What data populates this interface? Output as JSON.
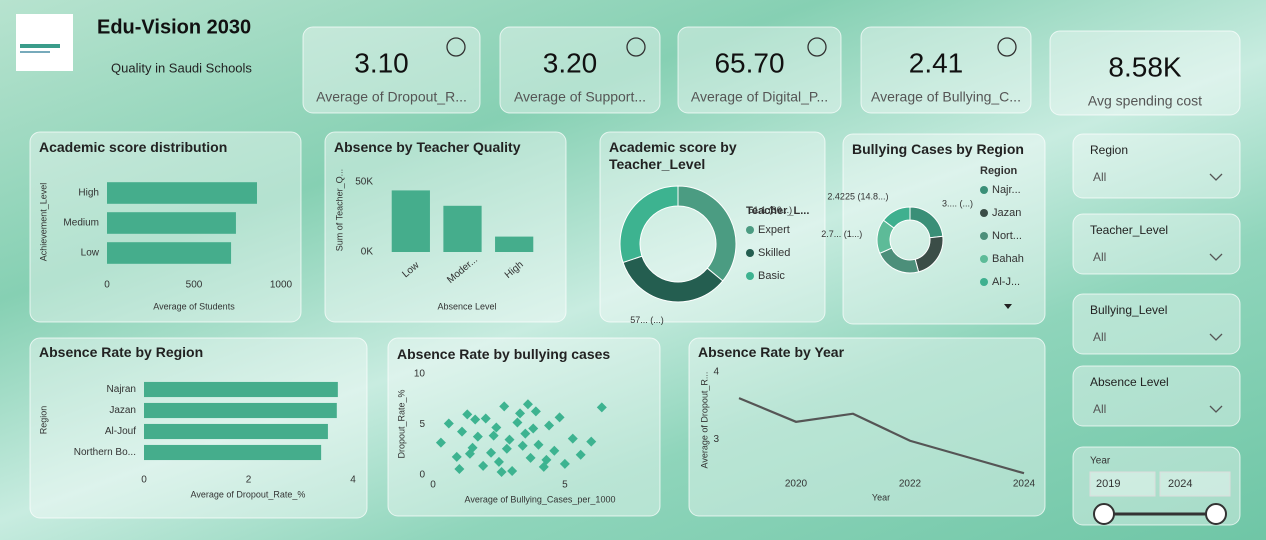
{
  "header": {
    "title": "Edu-Vision 2030",
    "subtitle": "Quality in Saudi Schools"
  },
  "kpis": [
    {
      "value": "3.10",
      "label": "Average of Dropout_R..."
    },
    {
      "value": "3.20",
      "label": "Average of Support..."
    },
    {
      "value": "65.70",
      "label": "Average of Digital_P..."
    },
    {
      "value": "2.41",
      "label": "Average of Bullying_C..."
    },
    {
      "value": "8.58K",
      "label": "Avg spending cost"
    }
  ],
  "slicers": [
    {
      "label": "Region",
      "value": "All"
    },
    {
      "label": "Teacher_Level",
      "value": "All"
    },
    {
      "label": "Bullying_Level",
      "value": "All"
    },
    {
      "label": "Absence Level",
      "value": "All"
    }
  ],
  "year_slicer": {
    "label": "Year",
    "from": 2019,
    "to": 2024
  },
  "chart_data": [
    {
      "type": "bar",
      "orientation": "horizontal",
      "title": "Academic score distribution",
      "x_label": "Average of Students",
      "y_label": "Achievement_Level",
      "categories": [
        "High",
        "Medium",
        "Low"
      ],
      "values": [
        862,
        741,
        713
      ],
      "color": "#45ad8c",
      "xlim": [
        0,
        1000
      ],
      "xticks": [
        0,
        500,
        1000
      ]
    },
    {
      "type": "bar",
      "orientation": "vertical",
      "title": "Absence by Teacher Quality",
      "x_label": "Absence Level",
      "y_label": "Sum of Teacher_Q...",
      "categories": [
        "Low",
        "Moder...",
        "High"
      ],
      "values": [
        44000,
        33000,
        11000
      ],
      "color": "#45ad8c",
      "ylim": [
        0,
        55000
      ],
      "yticks": [
        {
          "value": 0,
          "label": "0K"
        },
        {
          "value": 50000,
          "label": "50K"
        }
      ]
    },
    {
      "type": "donut",
      "title": "Academic score by Teacher_Level",
      "legend_title": "Teacher_L...",
      "categories": [
        "Expert",
        "Skilled",
        "Basic"
      ],
      "values": [
        61.1,
        57.5,
        51.2
      ],
      "value_labels": [
        "61.1 (36...)",
        "57... (...)",
        null
      ],
      "colors": [
        "#4b9c82",
        "#245e50",
        "#3db390"
      ]
    },
    {
      "type": "donut",
      "title": "Bullying Cases by Region",
      "legend_title": "Region",
      "categories": [
        "Najr...",
        "Jazan",
        "Nort...",
        "Bahah",
        "Al-J..."
      ],
      "values": [
        3.8,
        3.7,
        3.7,
        2.75,
        2.4225
      ],
      "value_labels": [
        "3.... (...)",
        null,
        null,
        "2.7... (1...)",
        "2.4225 (14.8...)"
      ],
      "colors": [
        "#3a8f77",
        "#3b4d47",
        "#4c8f7a",
        "#5dbb98",
        "#3fb08f"
      ]
    },
    {
      "type": "bar",
      "orientation": "horizontal",
      "title": "Absence Rate by Region",
      "x_label": "Average of Dropout_Rate_%",
      "y_label": "Region",
      "categories": [
        "Najran",
        "Jazan",
        "Al-Jouf",
        "Northern Bo..."
      ],
      "values": [
        3.71,
        3.69,
        3.52,
        3.39
      ],
      "color": "#45ad8c",
      "xlim": [
        0,
        4
      ],
      "xticks": [
        0,
        2,
        4
      ]
    },
    {
      "type": "scatter",
      "title": "Absence Rate by bullying cases",
      "x_label": "Average of Bullying_Cases_per_1000",
      "y_label": "Dropout_Rate_%",
      "color": "#3db390",
      "x": [
        0.3,
        0.6,
        0.9,
        1.1,
        1.3,
        1.5,
        1.7,
        1.9,
        2.0,
        2.2,
        2.4,
        2.5,
        2.7,
        2.9,
        3.0,
        3.2,
        3.4,
        3.5,
        3.7,
        3.9,
        4.0,
        4.2,
        4.4,
        4.6,
        4.8,
        5.0,
        5.3,
        5.6,
        6.0,
        6.4,
        1.0,
        1.6,
        2.3,
        2.8,
        3.3,
        3.8,
        4.3,
        1.4,
        2.6,
        3.6
      ],
      "values": [
        3.2,
        5.1,
        1.8,
        4.3,
        6.0,
        2.7,
        3.8,
        0.9,
        5.6,
        2.2,
        4.7,
        1.3,
        6.8,
        3.5,
        0.4,
        5.2,
        2.9,
        4.1,
        1.7,
        6.3,
        3.0,
        0.8,
        4.9,
        2.4,
        5.7,
        1.1,
        3.6,
        2.0,
        3.3,
        6.7,
        0.6,
        5.5,
        3.9,
        2.6,
        6.1,
        4.6,
        1.5,
        2.1,
        0.3,
        7.0
      ],
      "xlim": [
        0,
        8
      ],
      "xticks": [
        0,
        5
      ],
      "ylim": [
        0,
        10
      ],
      "yticks": [
        0,
        5,
        10
      ]
    },
    {
      "type": "line",
      "title": "Absence Rate by Year",
      "x_label": "Year",
      "y_label": "Average of Dropout_R...",
      "color": "#555555",
      "x": [
        2019,
        2020,
        2021,
        2022,
        2023,
        2024
      ],
      "values": [
        3.61,
        3.26,
        3.38,
        2.98,
        2.74,
        2.5
      ],
      "xlim": [
        2019,
        2024
      ],
      "xticks": [
        2020,
        2022,
        2024
      ],
      "ylim": [
        2.4,
        4.1
      ],
      "yticks": [
        3,
        4
      ]
    }
  ]
}
